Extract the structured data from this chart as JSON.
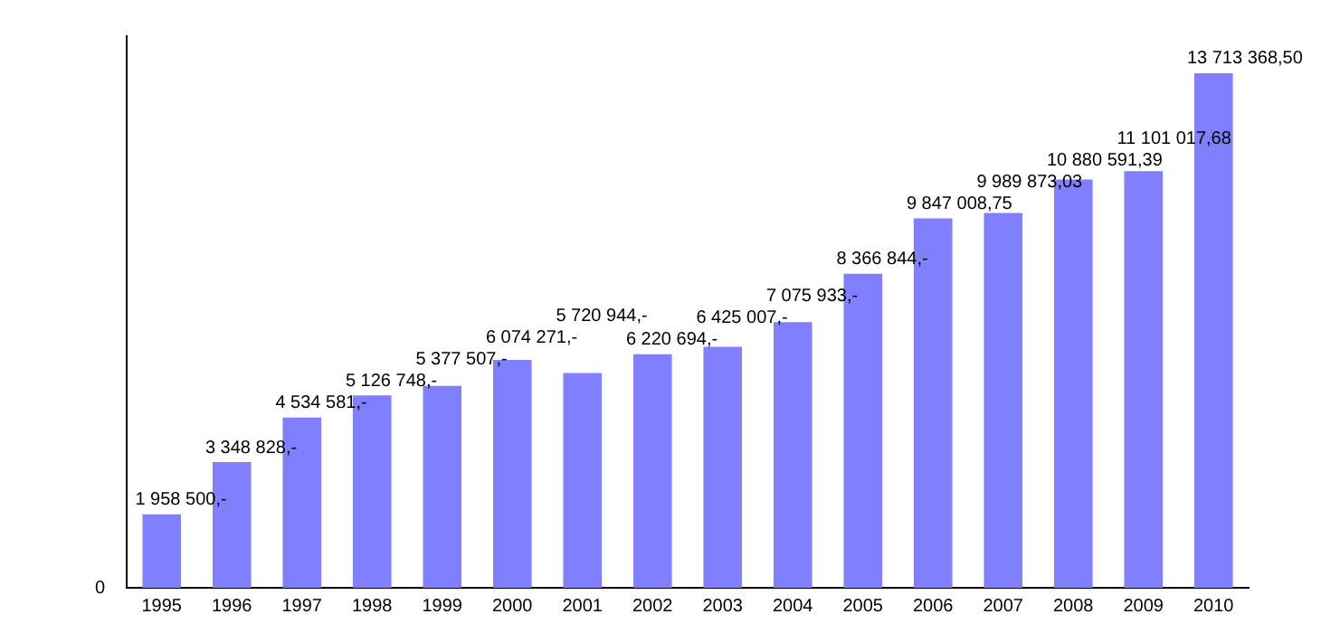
{
  "chart_data": {
    "type": "bar",
    "categories": [
      "1995",
      "1996",
      "1997",
      "1998",
      "1999",
      "2000",
      "2001",
      "2002",
      "2003",
      "2004",
      "2005",
      "2006",
      "2007",
      "2008",
      "2009",
      "2010"
    ],
    "values": [
      1958500,
      3348828,
      4534581,
      5126748,
      5377507,
      6074271,
      5720944,
      6220694,
      6425007,
      7075933,
      8366844,
      9847008.75,
      9989873.03,
      10880591.39,
      11101017.68,
      13713368.5
    ],
    "value_labels": [
      "1 958 500,-",
      "3 348 828,-",
      "4 534 581,-",
      "5 126 748,-",
      "5 377 507,-",
      "6 074 271,-",
      "5 720 944,-",
      "6 220 694,-",
      "6 425 007,-",
      "7 075 933,-",
      "8 366 844,-",
      "9 847 008,75",
      "9 989 873,03",
      "10 880 591,39",
      "11 101 017,68",
      "13 713 368,50"
    ],
    "color": "#8080ff",
    "ylim": [
      0,
      14700000
    ],
    "annotations": [
      "0"
    ],
    "grid": false,
    "legend": false
  }
}
